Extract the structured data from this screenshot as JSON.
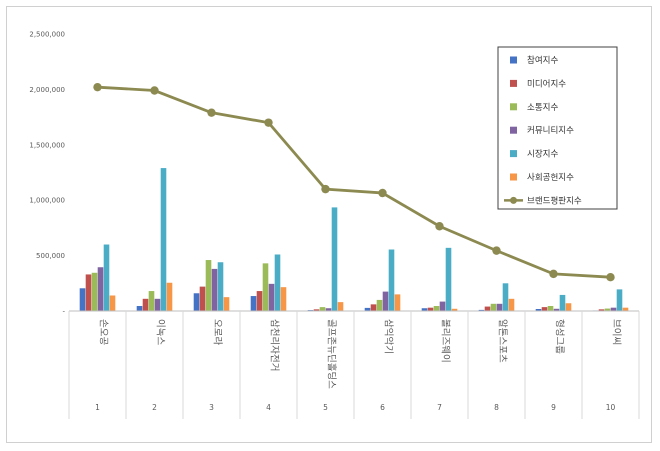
{
  "chart_data": {
    "type": "bar",
    "title": "",
    "xlabel": "",
    "ylabel": "",
    "ylim": [
      0,
      2500000
    ],
    "yticks": [
      "-",
      "500,000",
      "1,000,000",
      "1,500,000",
      "2,000,000",
      "2,500,000"
    ],
    "grid": false,
    "legend_position": "top-right",
    "categories": [
      "손오공",
      "이녹스",
      "오로라",
      "삼천리자전거",
      "골프존뉴딘홀딩스",
      "삼익악기",
      "볼리즈웨이",
      "알톤스포츠",
      "형성그룹",
      "브이씨"
    ],
    "ranks": [
      "1",
      "2",
      "3",
      "4",
      "5",
      "6",
      "7",
      "8",
      "9",
      "10"
    ],
    "series": [
      {
        "name": "참여지수",
        "color": "#4472c4",
        "type": "bar",
        "values": [
          205000,
          45000,
          160000,
          135000,
          8000,
          28000,
          25000,
          10000,
          18000,
          5000
        ]
      },
      {
        "name": "미디어지수",
        "color": "#c0504d",
        "type": "bar",
        "values": [
          330000,
          110000,
          220000,
          180000,
          15000,
          60000,
          30000,
          40000,
          35000,
          15000
        ]
      },
      {
        "name": "소통지수",
        "color": "#9bbb59",
        "type": "bar",
        "values": [
          345000,
          180000,
          460000,
          430000,
          35000,
          100000,
          45000,
          65000,
          45000,
          22000
        ]
      },
      {
        "name": "커뮤니티지수",
        "color": "#8064a2",
        "type": "bar",
        "values": [
          395000,
          110000,
          380000,
          245000,
          25000,
          175000,
          85000,
          65000,
          20000,
          30000
        ]
      },
      {
        "name": "시장지수",
        "color": "#4bacc6",
        "type": "bar",
        "values": [
          600000,
          1290000,
          440000,
          510000,
          935000,
          555000,
          570000,
          250000,
          145000,
          195000
        ]
      },
      {
        "name": "사회공헌지수",
        "color": "#f79646",
        "type": "bar",
        "values": [
          140000,
          255000,
          125000,
          215000,
          80000,
          150000,
          20000,
          110000,
          70000,
          30000
        ]
      },
      {
        "name": "브랜드평판지수",
        "color": "#8c8a50",
        "type": "line",
        "values": [
          2020000,
          1990000,
          1790000,
          1700000,
          1100000,
          1065000,
          765000,
          545000,
          335000,
          305000
        ]
      }
    ]
  }
}
